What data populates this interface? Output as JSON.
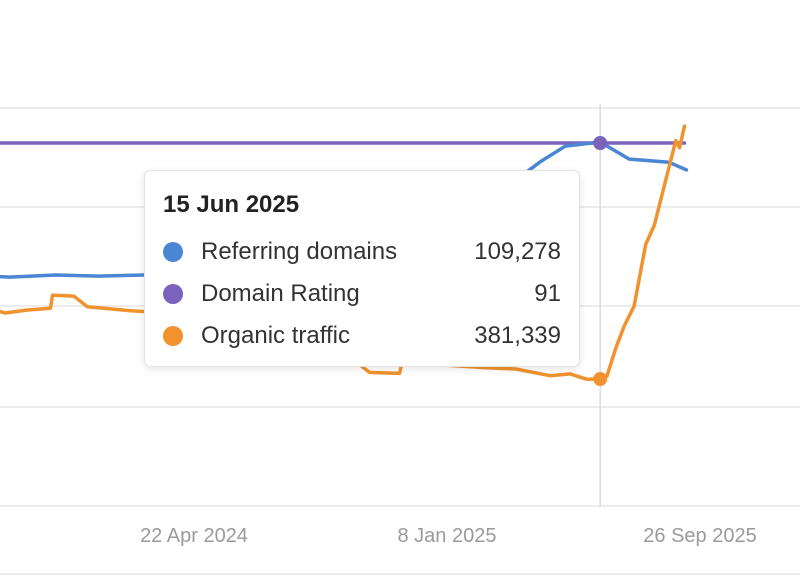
{
  "chart_data": {
    "type": "line",
    "x_tick_labels": [
      "22 Apr 2024",
      "8 Jan 2025",
      "26 Sep 2025"
    ],
    "hover_date": "15 Jun 2025",
    "series": [
      {
        "name": "Referring domains",
        "color": "#4a86d4",
        "points": [
          [
            "2023-09-01",
            97000
          ],
          [
            "2023-10-15",
            96800
          ],
          [
            "2023-12-01",
            97000
          ],
          [
            "2024-01-15",
            96900
          ],
          [
            "2024-03-01",
            97000
          ],
          [
            "2024-04-01",
            97100
          ],
          [
            "2024-04-05",
            98300
          ],
          [
            "2024-05-15",
            98600
          ],
          [
            "2024-07-01",
            99000
          ],
          [
            "2024-09-01",
            100000
          ],
          [
            "2024-11-01",
            100800
          ],
          [
            "2025-01-08",
            101500
          ],
          [
            "2025-03-01",
            104500
          ],
          [
            "2025-04-15",
            107500
          ],
          [
            "2025-05-10",
            108900
          ],
          [
            "2025-06-15",
            109278
          ],
          [
            "2025-07-15",
            107700
          ],
          [
            "2025-08-25",
            107400
          ],
          [
            "2025-09-12",
            106700
          ]
        ]
      },
      {
        "name": "Domain Rating",
        "color": "#7b62bd",
        "points": [
          [
            "2023-09-01",
            91
          ],
          [
            "2025-09-10",
            91
          ]
        ]
      },
      {
        "name": "Organic traffic",
        "color": "#f0922d",
        "points": [
          [
            "2023-09-01",
            532000
          ],
          [
            "2023-09-20",
            530000
          ],
          [
            "2023-10-10",
            518000
          ],
          [
            "2023-11-01",
            524000
          ],
          [
            "2023-11-26",
            528000
          ],
          [
            "2023-11-28",
            555000
          ],
          [
            "2023-12-20",
            553000
          ],
          [
            "2024-01-03",
            531000
          ],
          [
            "2024-02-15",
            523000
          ],
          [
            "2024-04-01",
            517000
          ],
          [
            "2024-05-01",
            512000
          ],
          [
            "2024-06-01",
            470000
          ],
          [
            "2024-08-01",
            440000
          ],
          [
            "2024-10-01",
            425000
          ],
          [
            "2024-10-20",
            395000
          ],
          [
            "2024-11-20",
            393000
          ],
          [
            "2024-11-23",
            418000
          ],
          [
            "2025-01-08",
            410000
          ],
          [
            "2025-02-15",
            405000
          ],
          [
            "2025-03-20",
            402000
          ],
          [
            "2025-04-25",
            388000
          ],
          [
            "2025-05-15",
            392000
          ],
          [
            "2025-06-01",
            381000
          ],
          [
            "2025-06-15",
            381339
          ],
          [
            "2025-06-22",
            387000
          ],
          [
            "2025-07-01",
            445000
          ],
          [
            "2025-07-10",
            492000
          ],
          [
            "2025-07-20",
            532000
          ],
          [
            "2025-08-01",
            660000
          ],
          [
            "2025-08-10",
            700000
          ],
          [
            "2025-08-20",
            780000
          ],
          [
            "2025-09-01",
            875000
          ],
          [
            "2025-09-05",
            860000
          ],
          [
            "2025-09-10",
            905000
          ]
        ]
      }
    ],
    "tooltip_rows": [
      {
        "label": "Referring domains",
        "value": "109,278",
        "color": "#4a86d4"
      },
      {
        "label": "Domain Rating",
        "value": "91",
        "color": "#7b62bd"
      },
      {
        "label": "Organic traffic",
        "value": "381,339",
        "color": "#f0922d"
      }
    ],
    "grid": true,
    "legend": "tooltip"
  }
}
